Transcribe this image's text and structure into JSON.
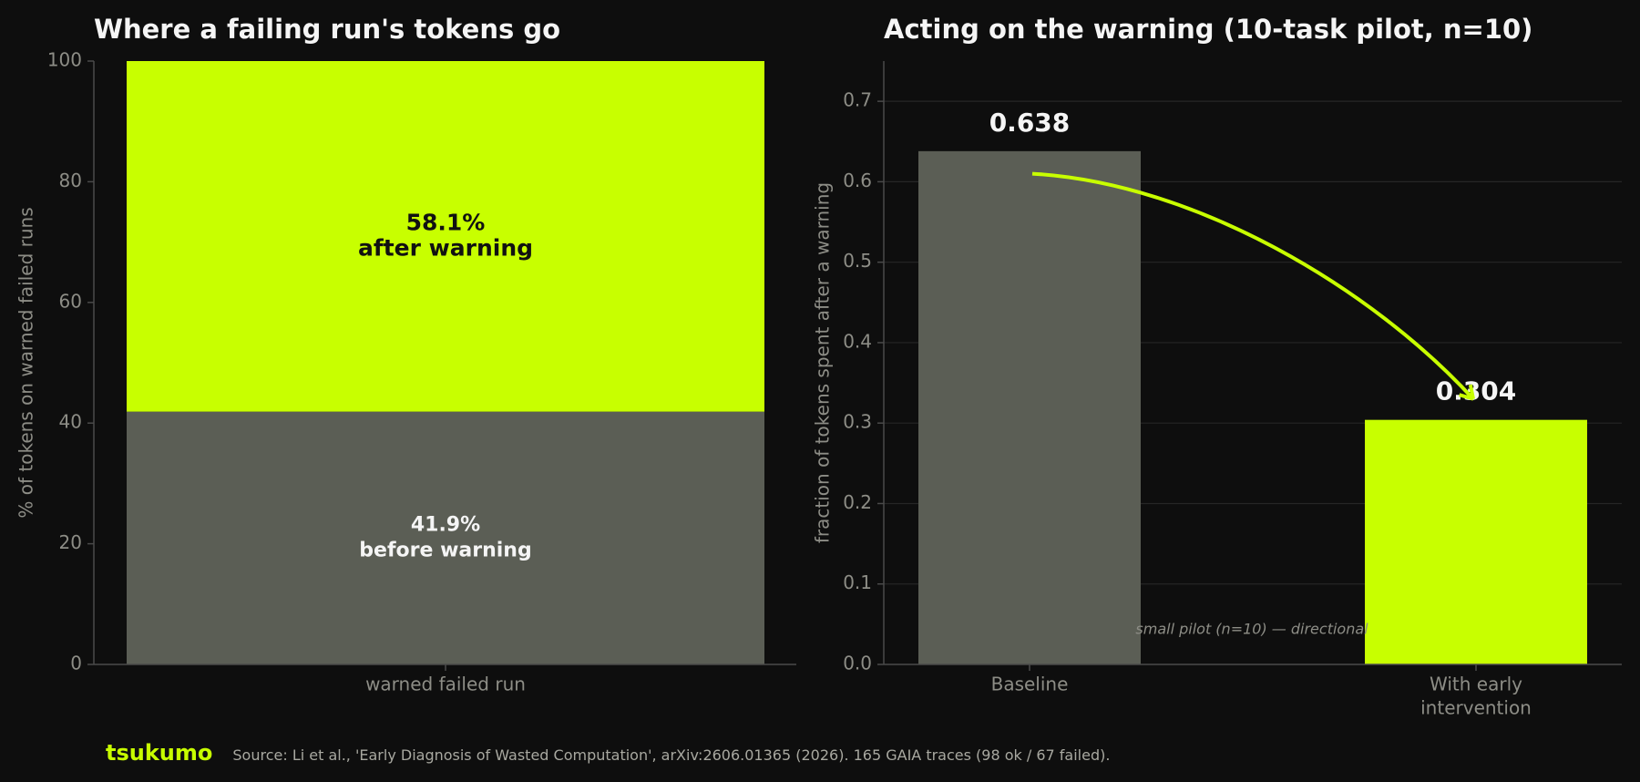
{
  "colors": {
    "background": "#0e0e0e",
    "accent": "#c8ff00",
    "gray_bar": "#5b5e55",
    "axis": "#4a4a4a",
    "tick_text": "#8d8d86",
    "title_text": "#f5f5f5",
    "dark_text": "#111111",
    "grid": "#262626"
  },
  "chart_data": [
    {
      "type": "bar",
      "stacked": true,
      "title": "Where a failing run's tokens go",
      "ylabel": "% of tokens on warned failed runs",
      "ylim": [
        0,
        100
      ],
      "yticks": [
        0,
        20,
        40,
        60,
        80,
        100
      ],
      "categories": [
        "warned failed run"
      ],
      "series": [
        {
          "values": [
            41.9
          ],
          "label_value": "41.9%",
          "label_text": "before warning"
        },
        {
          "values": [
            58.1
          ],
          "label_value": "58.1%",
          "label_text": "after warning"
        }
      ],
      "grid": false
    },
    {
      "type": "bar",
      "title": "Acting on the warning (10-task pilot, n=10)",
      "ylabel": "fraction of tokens spent after a warning",
      "ylim": [
        0,
        0.75
      ],
      "yticks": [
        "0.0",
        "0.1",
        "0.2",
        "0.3",
        "0.4",
        "0.5",
        "0.6",
        "0.7"
      ],
      "categories": [
        "Baseline",
        "With early intervention"
      ],
      "category_lines": [
        [
          "Baseline"
        ],
        [
          "With early",
          "intervention"
        ]
      ],
      "values": [
        0.638,
        0.304
      ],
      "value_labels": [
        "0.638",
        "0.304"
      ],
      "annotation": "small pilot (n=10) — directional",
      "arrow": {
        "from_category": "Baseline",
        "to_category": "With early intervention"
      },
      "grid": true
    }
  ],
  "footer": {
    "brand": "tsukumo",
    "source": "Source: Li et al., 'Early Diagnosis of Wasted Computation', arXiv:2606.01365 (2026). 165 GAIA traces (98 ok / 67 failed)."
  }
}
